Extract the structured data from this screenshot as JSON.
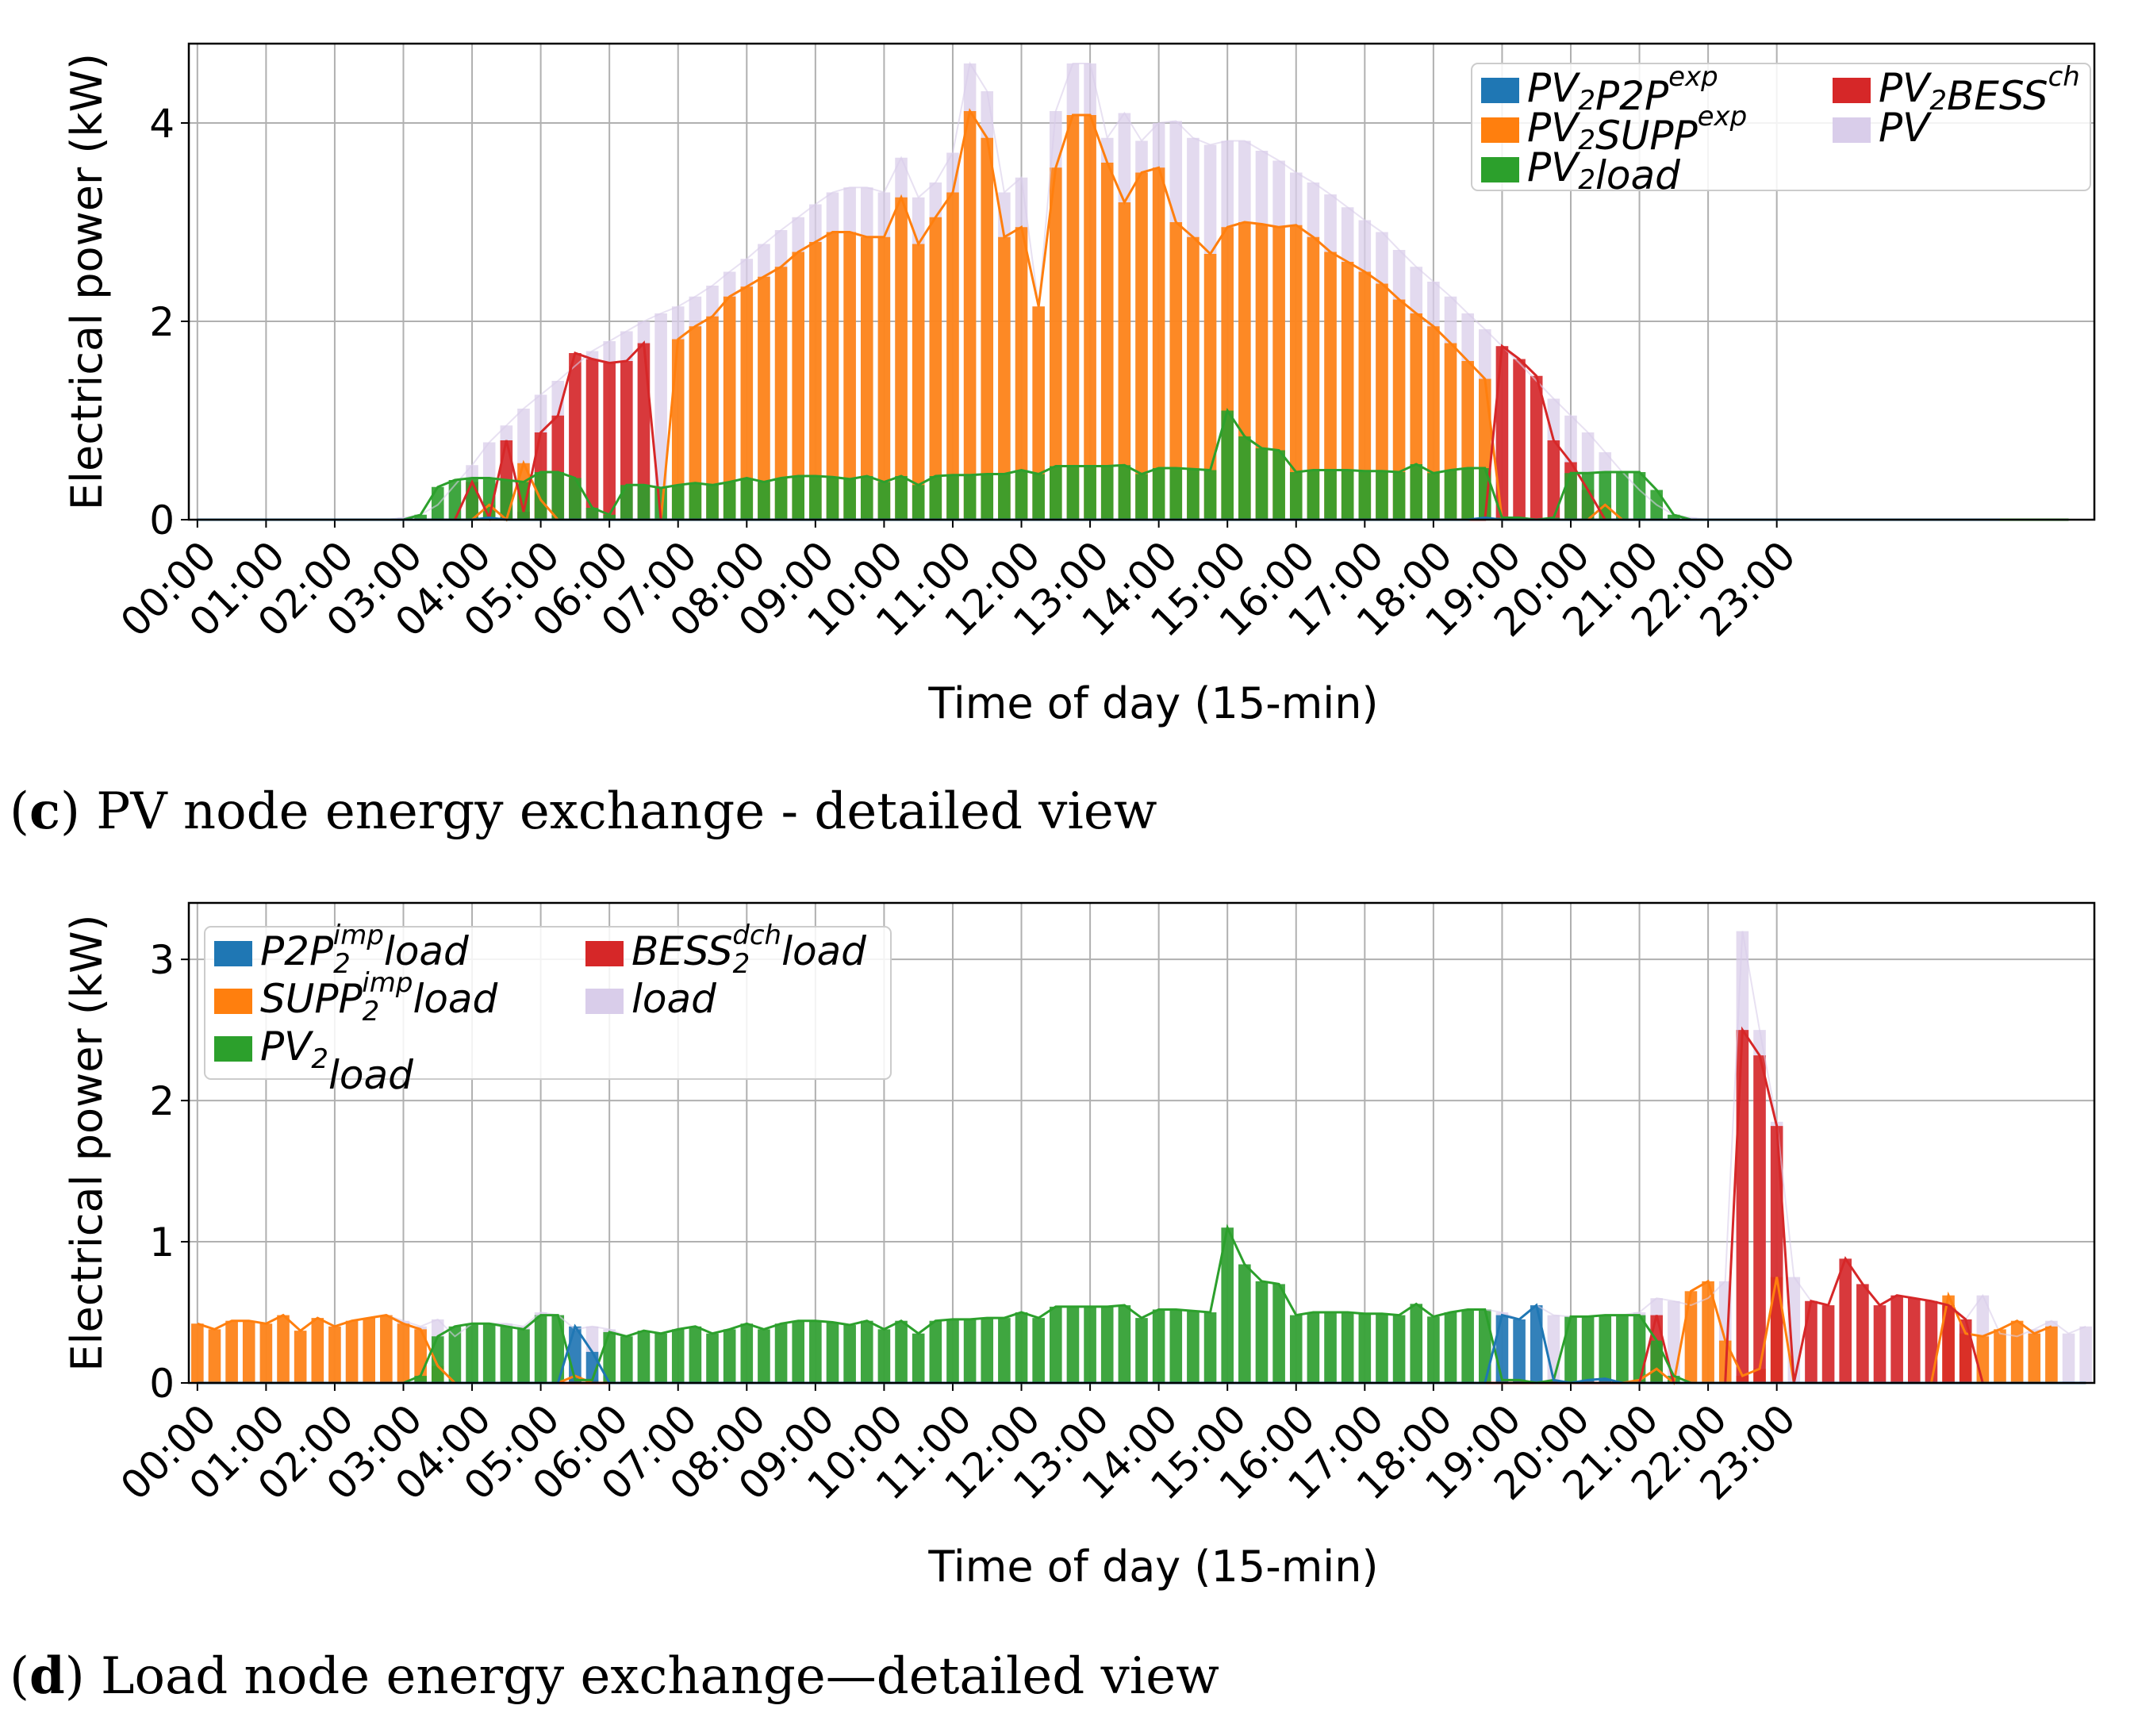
{
  "captions": {
    "c": {
      "letter": "c",
      "text": " PV node energy exchange - detailed view"
    },
    "d": {
      "letter": "d",
      "text": " Load node energy exchange—detailed view"
    }
  },
  "colors": {
    "blue": "#1f77b4",
    "orange": "#ff7f0e",
    "green": "#2ca02c",
    "red": "#d62728",
    "lavender": "#d9cdea",
    "grid": "#b0b0b0"
  },
  "chart_data": [
    {
      "id": "c",
      "type": "bar",
      "xlabel": "Time of day (15-min)",
      "ylabel": "Electrical power (kW)",
      "ylim": [
        0,
        4.8
      ],
      "yticks": [
        0,
        2,
        4
      ],
      "categories": [
        "00:00",
        "01:00",
        "02:00",
        "03:00",
        "04:00",
        "05:00",
        "06:00",
        "07:00",
        "08:00",
        "09:00",
        "10:00",
        "11:00",
        "12:00",
        "13:00",
        "14:00",
        "15:00",
        "16:00",
        "17:00",
        "18:00",
        "19:00",
        "20:00",
        "21:00",
        "22:00",
        "23:00"
      ],
      "legend": [
        {
          "key": "p2p",
          "base": "PV",
          "sub": "2",
          "rest": "P2P",
          "sup": "exp",
          "color": "#1f77b4"
        },
        {
          "key": "supp",
          "base": "PV",
          "sub": "2",
          "rest": "SUPP",
          "sup": "exp",
          "color": "#ff7f0e"
        },
        {
          "key": "pvload",
          "base": "PV",
          "sub": "2",
          "rest": "load",
          "sup": "",
          "color": "#2ca02c"
        },
        {
          "key": "bess",
          "base": "PV",
          "sub": "2",
          "rest": "BESS",
          "sup": "ch",
          "color": "#d62728"
        },
        {
          "key": "total",
          "base": "PV",
          "sub": "",
          "rest": "",
          "sup": "",
          "color": "#d9cdea"
        }
      ],
      "series": {
        "total": [
          0,
          0,
          0,
          0,
          0,
          0,
          0,
          0,
          0,
          0,
          0,
          0,
          0.02,
          0.05,
          0.15,
          0.35,
          0.55,
          0.78,
          0.95,
          1.12,
          1.26,
          1.4,
          1.55,
          1.7,
          1.8,
          1.9,
          2.0,
          2.08,
          2.15,
          2.25,
          2.36,
          2.5,
          2.63,
          2.78,
          2.92,
          3.05,
          3.18,
          3.3,
          3.35,
          3.35,
          3.3,
          3.65,
          3.25,
          3.4,
          3.7,
          4.6,
          4.32,
          3.3,
          3.45,
          2.15,
          4.12,
          4.6,
          4.6,
          3.85,
          4.1,
          3.82,
          4.0,
          4.02,
          3.85,
          3.78,
          3.82,
          3.82,
          3.72,
          3.62,
          3.5,
          3.4,
          3.28,
          3.15,
          3.02,
          2.9,
          2.72,
          2.55,
          2.4,
          2.25,
          2.08,
          1.92,
          1.75,
          1.58,
          1.4,
          1.22,
          1.05,
          0.88,
          0.68,
          0.48,
          0.3,
          0.15,
          0.05,
          0.02,
          0,
          0,
          0,
          0,
          0,
          0,
          0,
          0,
          0,
          0,
          0,
          0,
          0,
          0,
          0,
          0,
          0,
          0,
          0,
          0,
          0,
          0,
          0
        ],
        "pvload": [
          0,
          0,
          0,
          0,
          0,
          0,
          0,
          0,
          0,
          0,
          0,
          0,
          0,
          0.05,
          0.33,
          0.4,
          0.42,
          0.42,
          0.4,
          0.38,
          0.48,
          0.48,
          0.42,
          0.12,
          0.05,
          0.35,
          0.35,
          0.32,
          0.35,
          0.37,
          0.35,
          0.38,
          0.42,
          0.38,
          0.42,
          0.44,
          0.44,
          0.43,
          0.41,
          0.44,
          0.38,
          0.44,
          0.35,
          0.44,
          0.45,
          0.45,
          0.46,
          0.46,
          0.5,
          0.46,
          0.54,
          0.54,
          0.54,
          0.54,
          0.55,
          0.46,
          0.52,
          0.52,
          0.51,
          0.5,
          1.1,
          0.84,
          0.72,
          0.7,
          0.48,
          0.5,
          0.5,
          0.5,
          0.49,
          0.49,
          0.48,
          0.56,
          0.47,
          0.5,
          0.52,
          0.52,
          0.02,
          0.02,
          0,
          0.02,
          0.47,
          0.47,
          0.48,
          0.48,
          0.48,
          0.3,
          0.05,
          0,
          0,
          0,
          0,
          0,
          0,
          0,
          0,
          0,
          0,
          0,
          0,
          0,
          0,
          0,
          0,
          0,
          0,
          0,
          0,
          0,
          0,
          0
        ],
        "supp": [
          0,
          0,
          0,
          0,
          0,
          0,
          0,
          0,
          0,
          0,
          0,
          0,
          0,
          0,
          0,
          0,
          0,
          0.15,
          0,
          0.57,
          0.2,
          0,
          0,
          0,
          0,
          0,
          0,
          0,
          1.82,
          1.95,
          2.05,
          2.25,
          2.35,
          2.45,
          2.55,
          2.7,
          2.8,
          2.9,
          2.9,
          2.85,
          2.85,
          3.25,
          2.78,
          3.05,
          3.3,
          4.12,
          3.85,
          2.85,
          2.95,
          2.15,
          3.55,
          4.08,
          4.08,
          3.6,
          3.2,
          3.5,
          3.55,
          3.0,
          2.85,
          2.68,
          2.95,
          3.0,
          2.98,
          2.95,
          2.97,
          2.85,
          2.7,
          2.6,
          2.5,
          2.38,
          2.22,
          2.08,
          1.95,
          1.78,
          1.6,
          1.42,
          0,
          0,
          0,
          0,
          0,
          0,
          0.15,
          0,
          0,
          0,
          0,
          0,
          0,
          0,
          0,
          0,
          0,
          0,
          0,
          0,
          0,
          0,
          0,
          0,
          0,
          0,
          0,
          0,
          0,
          0
        ],
        "bess": [
          0,
          0,
          0,
          0,
          0,
          0,
          0,
          0,
          0,
          0,
          0,
          0,
          0,
          0,
          0,
          0,
          0.38,
          0.02,
          0.8,
          0.08,
          0.88,
          1.05,
          1.68,
          1.62,
          1.58,
          1.6,
          1.78,
          0,
          0,
          0,
          0,
          0,
          0,
          0,
          0,
          0,
          0,
          0,
          0,
          0,
          0,
          0,
          0,
          0,
          0,
          0,
          0,
          0,
          0,
          0,
          0,
          0,
          0,
          0,
          0,
          0,
          0,
          0,
          0,
          0,
          0,
          0,
          0,
          0,
          0,
          0,
          0,
          0,
          0,
          0,
          0,
          0,
          0,
          0,
          0,
          0,
          1.75,
          1.62,
          1.45,
          0.8,
          0.58,
          0.3,
          0,
          0,
          0,
          0,
          0,
          0,
          0,
          0,
          0,
          0,
          0,
          0,
          0,
          0,
          0,
          0,
          0,
          0,
          0,
          0,
          0,
          0,
          0,
          0
        ],
        "p2p": [
          0,
          0,
          0,
          0,
          0,
          0,
          0,
          0,
          0,
          0,
          0,
          0,
          0,
          0,
          0,
          0,
          0,
          0.02,
          0,
          0,
          0,
          0,
          0,
          0,
          0,
          0,
          0,
          0,
          0,
          0,
          0,
          0,
          0,
          0,
          0,
          0,
          0,
          0,
          0,
          0,
          0,
          0,
          0,
          0,
          0,
          0,
          0,
          0,
          0,
          0,
          0,
          0,
          0,
          0,
          0,
          0,
          0,
          0,
          0,
          0,
          0,
          0,
          0,
          0,
          0,
          0,
          0,
          0,
          0,
          0,
          0,
          0,
          0,
          0,
          0,
          0.02,
          0,
          0,
          0,
          0,
          0,
          0,
          0,
          0,
          0,
          0,
          0,
          0,
          0,
          0,
          0,
          0,
          0,
          0,
          0,
          0,
          0,
          0,
          0,
          0,
          0,
          0,
          0,
          0,
          0,
          0
        ]
      }
    },
    {
      "id": "d",
      "type": "bar",
      "xlabel": "Time of day (15-min)",
      "ylabel": "Electrical power (kW)",
      "ylim": [
        0,
        3.4
      ],
      "yticks": [
        0,
        1,
        2,
        3
      ],
      "categories": [
        "00:00",
        "01:00",
        "02:00",
        "03:00",
        "04:00",
        "05:00",
        "06:00",
        "07:00",
        "08:00",
        "09:00",
        "10:00",
        "11:00",
        "12:00",
        "13:00",
        "14:00",
        "15:00",
        "16:00",
        "17:00",
        "18:00",
        "19:00",
        "20:00",
        "21:00",
        "22:00",
        "23:00"
      ],
      "legend": [
        {
          "key": "p2p",
          "base": "P2P",
          "sub": "2",
          "sup": "imp",
          "rest": "load",
          "color": "#1f77b4"
        },
        {
          "key": "supp",
          "base": "SUPP",
          "sub": "2",
          "sup": "imp",
          "rest": "load",
          "color": "#ff7f0e"
        },
        {
          "key": "pvload",
          "base": "PV",
          "sub": "2",
          "sup": "",
          "rest": "load",
          "color": "#2ca02c"
        },
        {
          "key": "bess",
          "base": "BESS",
          "sub": "2",
          "sup": "dch",
          "rest": "load",
          "color": "#d62728"
        },
        {
          "key": "total",
          "base": "load",
          "sub": "",
          "sup": "",
          "rest": "",
          "color": "#d9cdea"
        }
      ],
      "series": {
        "total": [
          0.42,
          0.38,
          0.44,
          0.44,
          0.42,
          0.48,
          0.37,
          0.46,
          0.4,
          0.44,
          0.46,
          0.48,
          0.44,
          0.4,
          0.45,
          0.33,
          0.42,
          0.42,
          0.42,
          0.4,
          0.5,
          0.48,
          0.38,
          0.4,
          0.38,
          0.33,
          0.37,
          0.35,
          0.38,
          0.4,
          0.35,
          0.38,
          0.42,
          0.38,
          0.42,
          0.44,
          0.44,
          0.43,
          0.41,
          0.44,
          0.38,
          0.44,
          0.35,
          0.44,
          0.45,
          0.45,
          0.46,
          0.46,
          0.5,
          0.46,
          0.54,
          0.54,
          0.54,
          0.54,
          0.55,
          0.46,
          0.52,
          0.52,
          0.51,
          0.5,
          1.1,
          0.84,
          0.72,
          0.7,
          0.48,
          0.5,
          0.5,
          0.5,
          0.49,
          0.49,
          0.48,
          0.56,
          0.47,
          0.5,
          0.52,
          0.52,
          0.5,
          0.45,
          0.55,
          0.48,
          0.47,
          0.47,
          0.48,
          0.48,
          0.5,
          0.6,
          0.58,
          0.55,
          0.6,
          0.72,
          3.2,
          2.5,
          1.85,
          0.75,
          0.58,
          0.55,
          0.88,
          0.7,
          0.55,
          0.62,
          0.6,
          0.58,
          0.55,
          0.45,
          0.62,
          0.35,
          0.33,
          0.38,
          0.44,
          0.35,
          0.4
        ],
        "supp": [
          0.42,
          0.38,
          0.44,
          0.44,
          0.42,
          0.48,
          0.37,
          0.46,
          0.4,
          0.44,
          0.46,
          0.48,
          0.42,
          0.38,
          0.12,
          0,
          0,
          0,
          0,
          0,
          0,
          0,
          0.05,
          0,
          0,
          0,
          0,
          0,
          0,
          0,
          0,
          0,
          0,
          0,
          0,
          0,
          0,
          0,
          0,
          0,
          0,
          0,
          0,
          0,
          0,
          0,
          0,
          0,
          0,
          0,
          0,
          0,
          0,
          0,
          0,
          0,
          0,
          0,
          0,
          0,
          0,
          0,
          0,
          0,
          0,
          0,
          0,
          0,
          0,
          0,
          0,
          0,
          0,
          0,
          0,
          0,
          0,
          0,
          0,
          0,
          0,
          0,
          0,
          0,
          0.02,
          0.1,
          0,
          0.65,
          0.72,
          0.3,
          0.05,
          0.1,
          0.75,
          0,
          0,
          0,
          0,
          0,
          0,
          0,
          0,
          0,
          0.62,
          0.35,
          0.33,
          0.38,
          0.44,
          0.35,
          0.4
        ],
        "pvload": [
          0,
          0,
          0,
          0,
          0,
          0,
          0,
          0,
          0,
          0,
          0,
          0,
          0,
          0.05,
          0.33,
          0.4,
          0.42,
          0.42,
          0.4,
          0.38,
          0.48,
          0.48,
          0.02,
          0.02,
          0.36,
          0.33,
          0.37,
          0.35,
          0.38,
          0.4,
          0.35,
          0.38,
          0.42,
          0.38,
          0.42,
          0.44,
          0.44,
          0.43,
          0.41,
          0.44,
          0.38,
          0.44,
          0.35,
          0.44,
          0.45,
          0.45,
          0.46,
          0.46,
          0.5,
          0.46,
          0.54,
          0.54,
          0.54,
          0.54,
          0.55,
          0.46,
          0.52,
          0.52,
          0.51,
          0.5,
          1.1,
          0.84,
          0.72,
          0.7,
          0.48,
          0.5,
          0.5,
          0.5,
          0.49,
          0.49,
          0.48,
          0.56,
          0.47,
          0.5,
          0.52,
          0.52,
          0.02,
          0.02,
          0,
          0.02,
          0.47,
          0.47,
          0.48,
          0.48,
          0.48,
          0.3,
          0.05,
          0,
          0,
          0,
          0,
          0,
          0,
          0,
          0,
          0,
          0,
          0,
          0,
          0,
          0,
          0,
          0,
          0,
          0,
          0,
          0,
          0,
          0,
          0,
          0
        ],
        "p2p": [
          0,
          0,
          0,
          0,
          0,
          0,
          0,
          0,
          0,
          0,
          0,
          0,
          0,
          0,
          0,
          0,
          0,
          0,
          0,
          0,
          0,
          0,
          0.4,
          0.22,
          0,
          0,
          0,
          0,
          0,
          0,
          0,
          0,
          0,
          0,
          0,
          0,
          0,
          0,
          0,
          0,
          0,
          0,
          0,
          0,
          0,
          0,
          0,
          0,
          0,
          0,
          0,
          0,
          0,
          0,
          0,
          0,
          0,
          0,
          0,
          0,
          0,
          0,
          0,
          0,
          0,
          0,
          0,
          0,
          0,
          0,
          0,
          0,
          0,
          0,
          0,
          0,
          0.48,
          0.45,
          0.55,
          0.02,
          0,
          0.02,
          0.03,
          0,
          0,
          0,
          0,
          0,
          0,
          0,
          0,
          0,
          0,
          0,
          0,
          0,
          0,
          0,
          0,
          0,
          0,
          0,
          0,
          0,
          0,
          0,
          0,
          0,
          0,
          0,
          0
        ],
        "bess": [
          0,
          0,
          0,
          0,
          0,
          0,
          0,
          0,
          0,
          0,
          0,
          0,
          0,
          0,
          0,
          0,
          0,
          0,
          0,
          0,
          0,
          0,
          0,
          0,
          0,
          0,
          0,
          0,
          0,
          0,
          0,
          0,
          0,
          0,
          0,
          0,
          0,
          0,
          0,
          0,
          0,
          0,
          0,
          0,
          0,
          0,
          0,
          0,
          0,
          0,
          0,
          0,
          0,
          0,
          0,
          0,
          0,
          0,
          0,
          0,
          0,
          0,
          0,
          0,
          0,
          0,
          0,
          0,
          0,
          0,
          0,
          0,
          0,
          0,
          0,
          0,
          0,
          0,
          0,
          0,
          0,
          0,
          0,
          0,
          0,
          0.48,
          0,
          0,
          0,
          0,
          2.5,
          2.32,
          1.82,
          0,
          0.58,
          0.55,
          0.88,
          0.7,
          0.55,
          0.62,
          0.6,
          0.58,
          0.55,
          0.45,
          0,
          0,
          0,
          0,
          0,
          0,
          0
        ]
      }
    }
  ]
}
